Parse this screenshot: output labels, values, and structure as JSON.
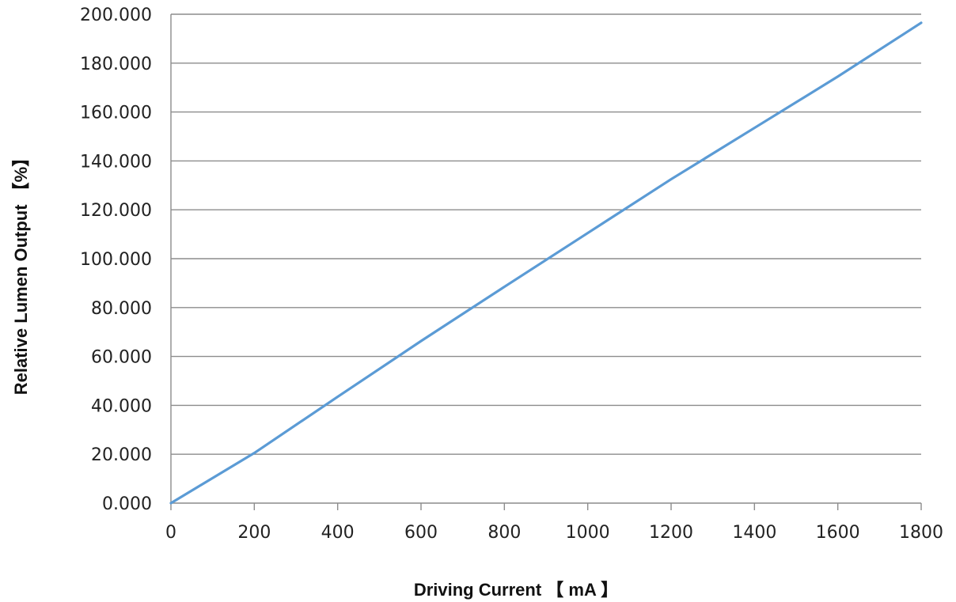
{
  "chart_data": {
    "type": "line",
    "title": "",
    "xlabel": "Driving Current 【 mA 】",
    "ylabel": "Relative Lumen Output 【%】",
    "xlim": [
      0,
      1800
    ],
    "ylim": [
      0,
      200
    ],
    "x_ticks": [
      0,
      200,
      400,
      600,
      800,
      1000,
      1200,
      1400,
      1600,
      1800
    ],
    "x_tick_labels": [
      "0",
      "200",
      "400",
      "600",
      "800",
      "1000",
      "1200",
      "1400",
      "1600",
      "1800"
    ],
    "y_ticks": [
      0,
      20,
      40,
      60,
      80,
      100,
      120,
      140,
      160,
      180,
      200
    ],
    "y_tick_labels": [
      "0.000",
      "20.000",
      "40.000",
      "60.000",
      "80.000",
      "100.000",
      "120.000",
      "140.000",
      "160.000",
      "180.000",
      "200.000"
    ],
    "grid": {
      "horizontal": true,
      "vertical": false
    },
    "legend": "none",
    "series": [
      {
        "color": "#5b9bd5",
        "x": [
          0,
          200,
          400,
          600,
          800,
          1000,
          1200,
          1400,
          1600,
          1800
        ],
        "y": [
          0,
          20.5,
          43.5,
          66.3,
          88.5,
          110.5,
          132.5,
          153.5,
          174.5,
          196.5
        ]
      }
    ]
  }
}
